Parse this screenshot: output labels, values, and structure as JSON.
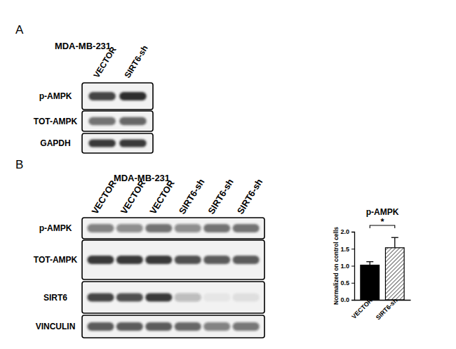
{
  "panels": [
    {
      "label": "A",
      "cell_line": "MDA-MB-231",
      "lanes": [
        "VECTOR",
        "SIRT6-sh"
      ],
      "rows": [
        {
          "label": "p-AMPK",
          "intensity": [
            0.8,
            0.9
          ]
        },
        {
          "label": "TOT-AMPK",
          "intensity": [
            0.6,
            0.65
          ]
        },
        {
          "label": "GAPDH",
          "intensity": [
            0.85,
            0.85
          ]
        }
      ]
    },
    {
      "label": "B",
      "cell_line": "MDA-MB-231",
      "lanes": [
        "VECTOR",
        "VECTOR",
        "VECTOR",
        "SIRT6-sh",
        "SIRT6-sh",
        "SIRT6-sh"
      ],
      "rows": [
        {
          "label": "p-AMPK",
          "intensity": [
            0.5,
            0.45,
            0.6,
            0.45,
            0.6,
            0.6
          ]
        },
        {
          "label": "TOT-AMPK",
          "intensity": [
            0.85,
            0.85,
            0.85,
            0.75,
            0.7,
            0.7
          ]
        },
        {
          "label": "SIRT6",
          "intensity": [
            0.8,
            0.75,
            0.85,
            0.25,
            0.05,
            0.08
          ]
        },
        {
          "label": "VINCULIN",
          "intensity": [
            0.7,
            0.7,
            0.7,
            0.65,
            0.5,
            0.55
          ]
        }
      ]
    }
  ],
  "chart_data": {
    "type": "bar",
    "title": "p-AMPK",
    "categories": [
      "VECTOR",
      "SIRT6-sh"
    ],
    "values": [
      1.02,
      1.53
    ],
    "errors": [
      0.1,
      0.3
    ],
    "colors": [
      "#000000",
      "#ffffff"
    ],
    "ylabel": "Normalized on control cells",
    "ylim": [
      0,
      2
    ],
    "yticks": [
      {
        "value": 0,
        "label": "0.0"
      },
      {
        "value": 0.5,
        "label": "0.5"
      },
      {
        "value": 1,
        "label": "1.0"
      },
      {
        "value": 1.5,
        "label": "1.5"
      },
      {
        "value": 2,
        "label": "2.0"
      }
    ],
    "annotations": [
      "*"
    ]
  }
}
